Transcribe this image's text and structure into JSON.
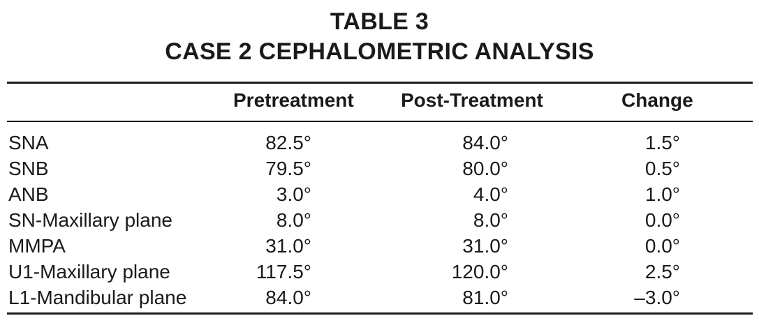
{
  "title": {
    "line1": "TABLE 3",
    "line2": "CASE 2 CEPHALOMETRIC ANALYSIS"
  },
  "columns": {
    "pretreatment": "Pretreatment",
    "post_treatment": "Post-Treatment",
    "change": "Change"
  },
  "rows": [
    {
      "label": "SNA",
      "pretreatment": "82.5°",
      "post_treatment": "84.0°",
      "change": "1.5°"
    },
    {
      "label": "SNB",
      "pretreatment": "79.5°",
      "post_treatment": "80.0°",
      "change": "0.5°"
    },
    {
      "label": "ANB",
      "pretreatment": "3.0°",
      "post_treatment": "4.0°",
      "change": "1.0°"
    },
    {
      "label": "SN-Maxillary plane",
      "pretreatment": "8.0°",
      "post_treatment": "8.0°",
      "change": "0.0°"
    },
    {
      "label": "MMPA",
      "pretreatment": "31.0°",
      "post_treatment": "31.0°",
      "change": "0.0°"
    },
    {
      "label": "U1-Maxillary plane",
      "pretreatment": "117.5°",
      "post_treatment": "120.0°",
      "change": "2.5°"
    },
    {
      "label": "L1-Mandibular plane",
      "pretreatment": "84.0°",
      "post_treatment": "81.0°",
      "change": "–3.0°"
    }
  ]
}
